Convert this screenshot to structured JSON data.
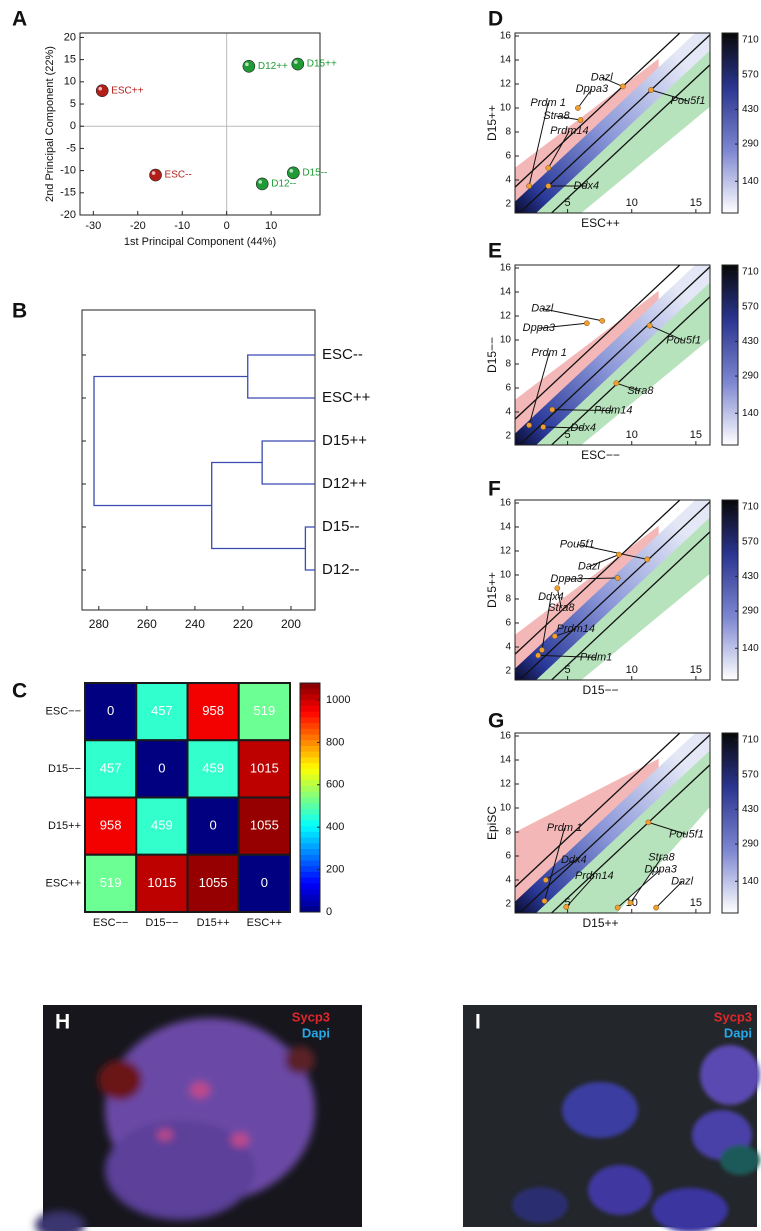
{
  "chart_data": [
    {
      "type": "scatter",
      "panel": "A",
      "xlabel": "1st Principal Component (44%)",
      "ylabel": "2nd Principal Component (22%)",
      "xlim": [
        -33,
        21
      ],
      "ylim": [
        -20,
        21
      ],
      "xticks": [
        -30,
        -20,
        -10,
        0,
        10
      ],
      "yticks": [
        -20,
        -15,
        -10,
        -5,
        0,
        5,
        10,
        15,
        20
      ],
      "zero_lines": true,
      "labels": [
        "ESC++",
        "ESC--",
        "D12++",
        "D15++",
        "D15--",
        "D12--"
      ],
      "x": [
        -28,
        -16,
        5,
        16,
        15,
        8
      ],
      "y": [
        8,
        -11,
        13.5,
        14,
        -10.5,
        -13
      ],
      "colors": [
        "#b41e18",
        "#b41e18",
        "#1f9a35",
        "#1f9a35",
        "#1f9a35",
        "#1f9a35"
      ]
    },
    {
      "type": "dendrogram",
      "panel": "B",
      "leaves": [
        "ESC--",
        "ESC++",
        "D15++",
        "D12++",
        "D15--",
        "D12--"
      ],
      "merge_heights": [
        218,
        212,
        194,
        233,
        282
      ],
      "xlim": [
        287,
        190
      ],
      "xticks": [
        280,
        260,
        240,
        220,
        200
      ],
      "color": "#3a4bb0"
    },
    {
      "type": "heatmap",
      "panel": "C",
      "rows": [
        "ESC−−",
        "D15−−",
        "D15++",
        "ESC++"
      ],
      "columns": [
        "ESC−−",
        "D15−−",
        "D15++",
        "ESC++"
      ],
      "values": [
        [
          0,
          457,
          958,
          519
        ],
        [
          457,
          0,
          459,
          1015
        ],
        [
          958,
          459,
          0,
          1055
        ],
        [
          519,
          1015,
          1055,
          0
        ]
      ],
      "zlim": [
        0,
        1080
      ],
      "zticks": [
        0,
        200,
        400,
        600,
        800,
        1000
      ],
      "colormap": "jet"
    },
    {
      "type": "density-scatter",
      "panel": "D",
      "xlabel": "ESC++",
      "ylabel": "D15++",
      "xlim": [
        0.9,
        16.1
      ],
      "ylim": [
        1.25,
        16.25
      ],
      "xticks": [
        5,
        10,
        15
      ],
      "yticks": [
        2,
        4,
        6,
        8,
        10,
        12,
        14,
        16
      ],
      "clim": [
        12,
        738
      ],
      "cticks": [
        140,
        290,
        430,
        570,
        710
      ],
      "color": "#f0a030",
      "genes": [
        "Dazl",
        "Dppa3",
        "Prdm 1",
        "Stra8",
        "Prdm14",
        "Ddx4",
        "Pou5f1"
      ],
      "x": [
        9.3,
        5.8,
        2,
        6,
        3.5,
        3.5,
        11.5
      ],
      "y": [
        11.8,
        10,
        3.5,
        9,
        5,
        3.5,
        11.5
      ]
    },
    {
      "type": "density-scatter",
      "panel": "E",
      "xlabel": "ESC−−",
      "ylabel": "D15−−",
      "xlim": [
        0.9,
        16.1
      ],
      "ylim": [
        1.25,
        16.25
      ],
      "xticks": [
        5,
        10,
        15
      ],
      "yticks": [
        2,
        4,
        6,
        8,
        10,
        12,
        14,
        16
      ],
      "clim": [
        12,
        738
      ],
      "cticks": [
        140,
        290,
        430,
        570,
        710
      ],
      "color": "#f0a030",
      "genes": [
        "Dazl",
        "Dppa3",
        "Prdm 1",
        "Prdm14",
        "Ddx4",
        "Pou5f1",
        "Stra8"
      ],
      "x": [
        7.7,
        6.5,
        2,
        3.8,
        3.1,
        11.4,
        8.8
      ],
      "y": [
        11.6,
        11.4,
        2.9,
        4.2,
        2.75,
        11.2,
        6.4
      ]
    },
    {
      "type": "density-scatter",
      "panel": "F",
      "xlabel": "D15−−",
      "ylabel": "D15++",
      "xlim": [
        0.9,
        16.1
      ],
      "ylim": [
        1.25,
        16.25
      ],
      "xticks": [
        5,
        10,
        15
      ],
      "yticks": [
        2,
        4,
        6,
        8,
        10,
        12,
        14,
        16
      ],
      "clim": [
        12,
        738
      ],
      "cticks": [
        140,
        290,
        430,
        570,
        710
      ],
      "color": "#f0a030",
      "genes": [
        "Pou5f1",
        "Dazl",
        "Dppa3",
        "Ddx4",
        "Stra8",
        "Prdm14",
        "Prdm1"
      ],
      "x": [
        11.2,
        9,
        8.9,
        3,
        4.2,
        4,
        2.7
      ],
      "y": [
        11.3,
        11.7,
        9.75,
        3.75,
        8.9,
        4.9,
        3.3
      ]
    },
    {
      "type": "density-scatter",
      "panel": "G",
      "xlabel": "D15++",
      "ylabel": "EpiSC",
      "xlim": [
        0.9,
        16.1
      ],
      "ylim": [
        1.25,
        16.25
      ],
      "xticks": [
        5,
        10,
        15
      ],
      "yticks": [
        2,
        4,
        6,
        8,
        10,
        12,
        14,
        16
      ],
      "clim": [
        12,
        738
      ],
      "cticks": [
        140,
        290,
        430,
        570,
        710
      ],
      "color": "#f0a030",
      "genes": [
        "Pou5f1",
        "Prdm 1",
        "Ddx4",
        "Prdm14",
        "Stra8",
        "Dppa3",
        "Dazl"
      ],
      "x": [
        11.3,
        3.2,
        3.3,
        4.9,
        9.9,
        8.9,
        11.9
      ],
      "y": [
        8.8,
        2.25,
        4,
        1.75,
        2.1,
        1.7,
        1.7
      ]
    }
  ],
  "images": [
    {
      "panel": "H",
      "labels": [
        "Sycp3",
        "Dapi"
      ]
    },
    {
      "panel": "I",
      "labels": [
        "Sycp3",
        "Dapi"
      ]
    }
  ]
}
